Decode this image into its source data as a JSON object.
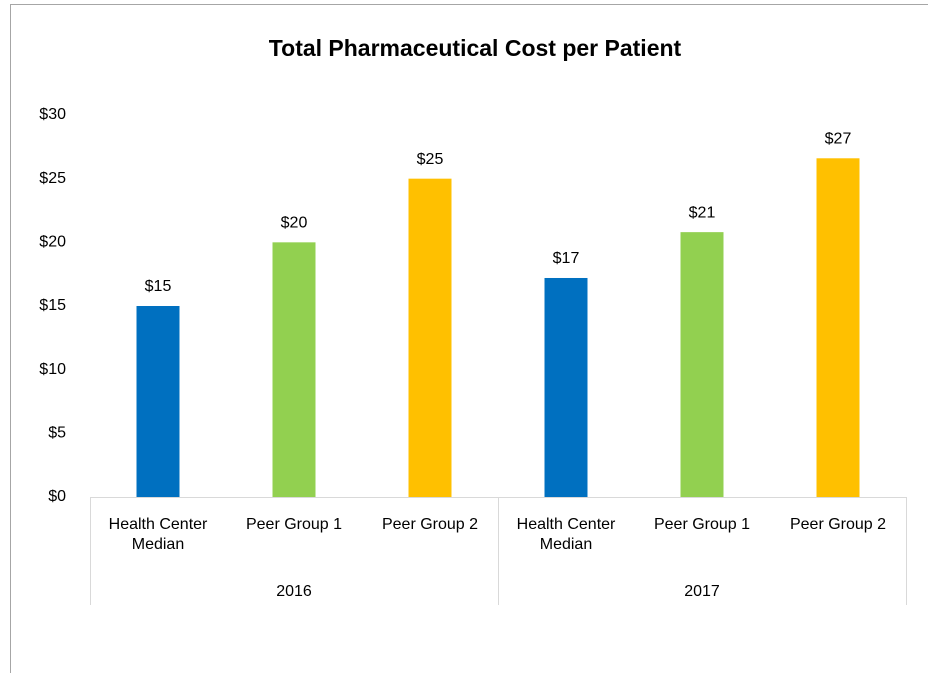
{
  "chart_data": {
    "type": "bar",
    "title": "Total Pharmaceutical Cost per Patient",
    "categories": [
      "Health Center Median",
      "Peer Group 1",
      "Peer Group 2",
      "Health Center Median",
      "Peer Group 1",
      "Peer Group 2"
    ],
    "groups": [
      "2016",
      "2017"
    ],
    "values": [
      15,
      20,
      25,
      17.2,
      20.8,
      26.6
    ],
    "value_labels": [
      "$15",
      "$20",
      "$25",
      "$17",
      "$21",
      "$27"
    ],
    "colors": [
      "#0070c0",
      "#92d050",
      "#ffc000",
      "#0070c0",
      "#92d050",
      "#ffc000"
    ],
    "ylim": [
      0,
      30
    ],
    "yticks": [
      {
        "value": 0,
        "label": "$0"
      },
      {
        "value": 5,
        "label": "$5"
      },
      {
        "value": 10,
        "label": "$10"
      },
      {
        "value": 15,
        "label": "$15"
      },
      {
        "value": 20,
        "label": "$20"
      },
      {
        "value": 25,
        "label": "$25"
      },
      {
        "value": 30,
        "label": "$30"
      }
    ],
    "grid": false
  }
}
